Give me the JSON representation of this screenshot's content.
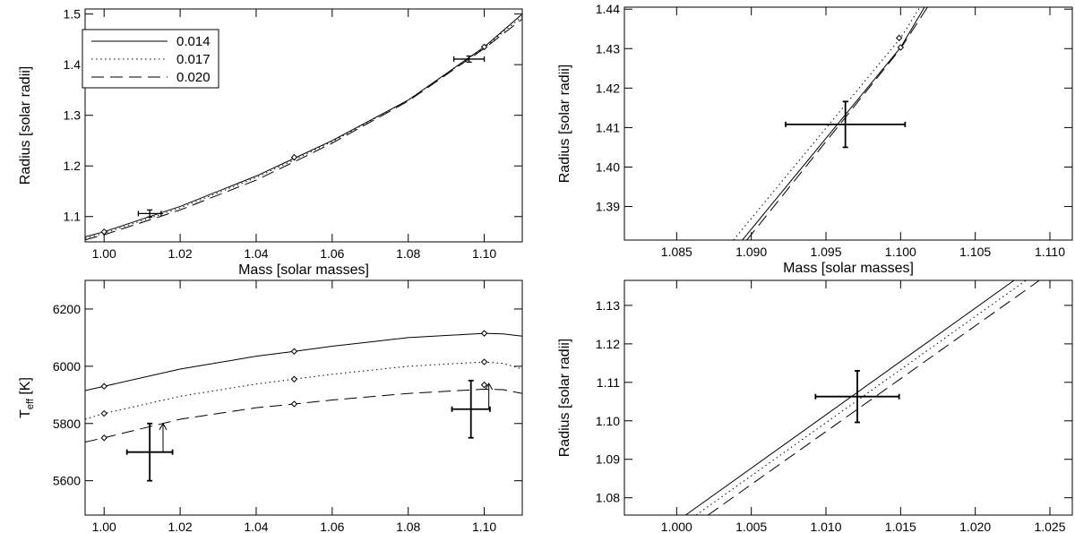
{
  "chart_data": [
    {
      "type": "line",
      "xlabel": "Mass [solar masses]",
      "ylabel": "Radius [solar radii]",
      "xlim": [
        0.995,
        1.11
      ],
      "ylim": [
        1.05,
        1.51
      ],
      "xticks": [
        1.0,
        1.02,
        1.04,
        1.06,
        1.08,
        1.1
      ],
      "xtick_labels": [
        "1.00",
        "1.02",
        "1.04",
        "1.06",
        "1.08",
        "1.10"
      ],
      "yticks": [
        1.1,
        1.2,
        1.3,
        1.4,
        1.5
      ],
      "ytick_labels": [
        "1.1",
        "1.2",
        "1.3",
        "1.4",
        "1.5"
      ],
      "legend": {
        "placement": "top-left",
        "entries": [
          "0.014",
          "0.017",
          "0.020"
        ]
      },
      "series": [
        {
          "name": "0.014",
          "dash": "solid",
          "x": [
            0.995,
            1.0,
            1.02,
            1.04,
            1.05,
            1.06,
            1.08,
            1.1,
            1.11
          ],
          "y": [
            1.06,
            1.07,
            1.12,
            1.18,
            1.215,
            1.25,
            1.33,
            1.435,
            1.5
          ]
        },
        {
          "name": "0.017",
          "dash": "dotted",
          "x": [
            0.995,
            1.0,
            1.02,
            1.04,
            1.05,
            1.06,
            1.08,
            1.1,
            1.11
          ],
          "y": [
            1.057,
            1.067,
            1.117,
            1.177,
            1.212,
            1.248,
            1.33,
            1.434,
            1.495
          ]
        },
        {
          "name": "0.020",
          "dash": "dashed",
          "x": [
            0.995,
            1.0,
            1.02,
            1.04,
            1.05,
            1.06,
            1.08,
            1.1,
            1.11
          ],
          "y": [
            1.054,
            1.064,
            1.113,
            1.172,
            1.208,
            1.245,
            1.328,
            1.432,
            1.49
          ]
        }
      ],
      "markers": [
        {
          "x": 1.0,
          "y": 1.07
        },
        {
          "x": 1.05,
          "y": 1.217
        },
        {
          "x": 1.1,
          "y": 1.435
        }
      ],
      "error_points": [
        {
          "x": 1.012,
          "y": 1.106,
          "xerr": 0.003,
          "yerr": 0.007
        },
        {
          "x": 1.096,
          "y": 1.411,
          "xerr": 0.004,
          "yerr": 0.006
        }
      ]
    },
    {
      "type": "line",
      "xlabel": "Mass [solar masses]",
      "ylabel": "Radius [solar radii]",
      "xlim": [
        1.0815,
        1.1115
      ],
      "ylim": [
        1.3815,
        1.4405
      ],
      "xticks": [
        1.085,
        1.09,
        1.095,
        1.1,
        1.105,
        1.11
      ],
      "xtick_labels": [
        "1.085",
        "1.090",
        "1.095",
        "1.100",
        "1.105",
        "1.110"
      ],
      "yticks": [
        1.39,
        1.4,
        1.41,
        1.42,
        1.43,
        1.44
      ],
      "ytick_labels": [
        "1.39",
        "1.40",
        "1.41",
        "1.42",
        "1.43",
        "1.44"
      ],
      "series": [
        {
          "name": "0.014",
          "dash": "solid",
          "x": [
            1.0894,
            1.1,
            1.1016
          ],
          "y": [
            1.3815,
            1.4303,
            1.4405
          ]
        },
        {
          "name": "0.017",
          "dash": "dotted",
          "x": [
            1.0888,
            1.1,
            1.1013
          ],
          "y": [
            1.3815,
            1.4327,
            1.4405
          ]
        },
        {
          "name": "0.020",
          "dash": "dashed",
          "x": [
            1.0897,
            1.1,
            1.1018
          ],
          "y": [
            1.3815,
            1.43,
            1.4405
          ]
        }
      ],
      "markers": [
        {
          "x": 1.1,
          "y": 1.4303
        },
        {
          "x": 1.0999,
          "y": 1.4327
        }
      ],
      "error_points": [
        {
          "x": 1.0963,
          "y": 1.4108,
          "xerr": 0.004,
          "yerr": 0.0058
        }
      ]
    },
    {
      "type": "line",
      "xlabel": "Mass [solar masses]",
      "ylabel": "T_eff [K]",
      "xlim": [
        0.995,
        1.11
      ],
      "ylim": [
        5480,
        6300
      ],
      "xticks": [
        1.0,
        1.02,
        1.04,
        1.06,
        1.08,
        1.1
      ],
      "xtick_labels": [
        "1.00",
        "1.02",
        "1.04",
        "1.06",
        "1.08",
        "1.10"
      ],
      "yticks": [
        5600,
        5800,
        6000,
        6200
      ],
      "ytick_labels": [
        "5600",
        "5800",
        "6000",
        "6200"
      ],
      "series": [
        {
          "name": "0.014",
          "dash": "solid",
          "x": [
            0.995,
            1.0,
            1.02,
            1.04,
            1.05,
            1.06,
            1.08,
            1.1,
            1.105,
            1.11
          ],
          "y": [
            5915,
            5930,
            5990,
            6035,
            6052,
            6070,
            6100,
            6115,
            6113,
            6105
          ]
        },
        {
          "name": "0.017",
          "dash": "dotted",
          "x": [
            0.995,
            1.0,
            1.02,
            1.04,
            1.05,
            1.06,
            1.08,
            1.1,
            1.105,
            1.11
          ],
          "y": [
            5815,
            5835,
            5895,
            5938,
            5955,
            5972,
            6000,
            6015,
            6010,
            5990
          ]
        },
        {
          "name": "0.020",
          "dash": "dashed",
          "x": [
            0.995,
            1.0,
            1.02,
            1.04,
            1.05,
            1.06,
            1.08,
            1.1,
            1.105,
            1.11
          ],
          "y": [
            5735,
            5750,
            5815,
            5855,
            5868,
            5882,
            5905,
            5920,
            5918,
            5905
          ]
        }
      ],
      "markers": [
        {
          "x": 1.0,
          "y": 5930
        },
        {
          "x": 1.05,
          "y": 6052
        },
        {
          "x": 1.1,
          "y": 6115
        },
        {
          "x": 1.0,
          "y": 5835
        },
        {
          "x": 1.05,
          "y": 5955
        },
        {
          "x": 1.1,
          "y": 6015
        },
        {
          "x": 1.0,
          "y": 5750
        },
        {
          "x": 1.05,
          "y": 5868
        },
        {
          "x": 1.1,
          "y": 5935
        }
      ],
      "error_points": [
        {
          "x": 1.012,
          "y": 5700,
          "xerr": 0.006,
          "yerr": 100
        },
        {
          "x": 1.0965,
          "y": 5850,
          "xerr": 0.005,
          "yerr": 100
        }
      ],
      "arrows": [
        {
          "x": 1.0155,
          "y_from": 5700,
          "y_to": 5800
        },
        {
          "x": 1.1012,
          "y_from": 5850,
          "y_to": 5940
        }
      ]
    },
    {
      "type": "line",
      "xlabel": "Mass [solar masses]",
      "ylabel": "Radius [solar radii]",
      "xlim": [
        0.9965,
        1.0265
      ],
      "ylim": [
        1.0755,
        1.1365
      ],
      "xticks": [
        1.0,
        1.005,
        1.01,
        1.015,
        1.02,
        1.025
      ],
      "xtick_labels": [
        "1.000",
        "1.005",
        "1.010",
        "1.015",
        "1.020",
        "1.025"
      ],
      "yticks": [
        1.08,
        1.09,
        1.1,
        1.11,
        1.12,
        1.13
      ],
      "ytick_labels": [
        "1.08",
        "1.09",
        "1.10",
        "1.11",
        "1.12",
        "1.13"
      ],
      "series": [
        {
          "name": "0.014",
          "dash": "solid",
          "x": [
            1.0006,
            1.0226
          ],
          "y": [
            1.0755,
            1.1365
          ]
        },
        {
          "name": "0.017",
          "dash": "dotted",
          "x": [
            1.0013,
            1.0234
          ],
          "y": [
            1.0755,
            1.1365
          ]
        },
        {
          "name": "0.020",
          "dash": "dashed",
          "x": [
            1.0021,
            1.0243
          ],
          "y": [
            1.0755,
            1.1365
          ]
        }
      ],
      "error_points": [
        {
          "x": 1.0121,
          "y": 1.1063,
          "xerr": 0.0028,
          "yerr": 0.0067
        }
      ]
    }
  ]
}
